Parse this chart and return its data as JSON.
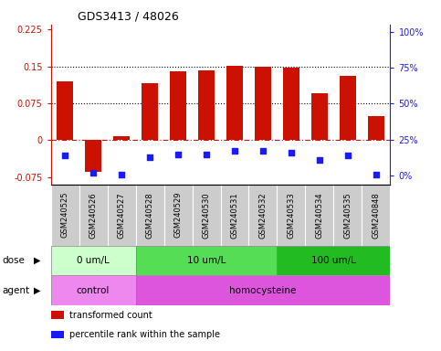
{
  "title": "GDS3413 / 48026",
  "samples": [
    "GSM240525",
    "GSM240526",
    "GSM240527",
    "GSM240528",
    "GSM240529",
    "GSM240530",
    "GSM240531",
    "GSM240532",
    "GSM240533",
    "GSM240534",
    "GSM240535",
    "GSM240848"
  ],
  "transformed_count": [
    0.12,
    -0.065,
    0.007,
    0.115,
    0.14,
    0.142,
    0.152,
    0.15,
    0.148,
    0.095,
    0.13,
    0.048
  ],
  "percentile_rank_actual": [
    14,
    2,
    1,
    13,
    15,
    15,
    17,
    17,
    16,
    11,
    14,
    1
  ],
  "ylim_left": [
    -0.09,
    0.235
  ],
  "ylim_right": [
    -6,
    105
  ],
  "yticks_left": [
    -0.075,
    0,
    0.075,
    0.15,
    0.225
  ],
  "yticks_right": [
    0,
    25,
    50,
    75,
    100
  ],
  "ytick_labels_left": [
    "-0.075",
    "0",
    "0.075",
    "0.15",
    "0.225"
  ],
  "ytick_labels_right": [
    "0%",
    "25%",
    "50%",
    "75%",
    "100%"
  ],
  "hlines_dotted": [
    0.075,
    0.15
  ],
  "hline_dash_dot": 0,
  "bar_color": "#cc1100",
  "dot_color": "#1a1aff",
  "dose_groups": [
    {
      "label": "0 um/L",
      "start": 0,
      "end": 3,
      "color": "#ccffcc"
    },
    {
      "label": "10 um/L",
      "start": 3,
      "end": 8,
      "color": "#55dd55"
    },
    {
      "label": "100 um/L",
      "start": 8,
      "end": 12,
      "color": "#22bb22"
    }
  ],
  "agent_groups": [
    {
      "label": "control",
      "start": 0,
      "end": 3,
      "color": "#ee88ee"
    },
    {
      "label": "homocysteine",
      "start": 3,
      "end": 12,
      "color": "#dd55dd"
    }
  ],
  "legend_items": [
    {
      "label": "transformed count",
      "color": "#cc1100"
    },
    {
      "label": "percentile rank within the sample",
      "color": "#1a1aff"
    }
  ],
  "dose_label": "dose",
  "agent_label": "agent",
  "bar_width": 0.6,
  "label_box_color": "#cccccc"
}
